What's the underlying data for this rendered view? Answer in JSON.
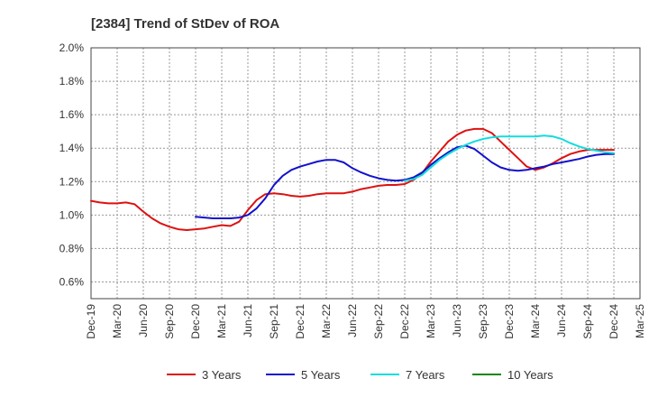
{
  "chart_data": {
    "type": "line",
    "title": "[2384]  Trend of StDev of ROA",
    "xlabel": "",
    "ylabel": "",
    "x_tick_labels": [
      "Dec-19",
      "Mar-20",
      "Jun-20",
      "Sep-20",
      "Dec-20",
      "Mar-21",
      "Jun-21",
      "Sep-21",
      "Dec-21",
      "Mar-22",
      "Jun-22",
      "Sep-22",
      "Dec-22",
      "Mar-23",
      "Jun-23",
      "Sep-23",
      "Dec-23",
      "Mar-24",
      "Jun-24",
      "Sep-24",
      "Dec-24",
      "Mar-25"
    ],
    "y_tick_labels": [
      "0.6%",
      "0.8%",
      "1.0%",
      "1.2%",
      "1.4%",
      "1.6%",
      "1.8%",
      "2.0%"
    ],
    "ylim": [
      0.5,
      2.0
    ],
    "y_ticks": [
      0.6,
      0.8,
      1.0,
      1.2,
      1.4,
      1.6,
      1.8,
      2.0
    ],
    "grid": true,
    "legend_position": "bottom",
    "series": [
      {
        "name": "3 Years",
        "color": "#dd1111",
        "x": [
          "Dec-19",
          "Jan-20",
          "Feb-20",
          "Mar-20",
          "Apr-20",
          "May-20",
          "Jun-20",
          "Jul-20",
          "Aug-20",
          "Sep-20",
          "Oct-20",
          "Nov-20",
          "Dec-20",
          "Jan-21",
          "Feb-21",
          "Mar-21",
          "Apr-21",
          "May-21",
          "Jun-21",
          "Jul-21",
          "Aug-21",
          "Sep-21",
          "Oct-21",
          "Nov-21",
          "Dec-21",
          "Jan-22",
          "Feb-22",
          "Mar-22",
          "Apr-22",
          "May-22",
          "Jun-22",
          "Jul-22",
          "Aug-22",
          "Sep-22",
          "Oct-22",
          "Nov-22",
          "Dec-22",
          "Jan-23",
          "Feb-23",
          "Mar-23",
          "Apr-23",
          "May-23",
          "Jun-23",
          "Jul-23",
          "Aug-23",
          "Sep-23",
          "Oct-23",
          "Nov-23",
          "Dec-23",
          "Jan-24",
          "Feb-24",
          "Mar-24",
          "Apr-24",
          "May-24",
          "Jun-24",
          "Jul-24",
          "Aug-24",
          "Sep-24",
          "Oct-24",
          "Nov-24",
          "Dec-24"
        ],
        "values": [
          1.085,
          1.075,
          1.07,
          1.07,
          1.075,
          1.065,
          1.02,
          0.98,
          0.95,
          0.93,
          0.915,
          0.91,
          0.915,
          0.92,
          0.93,
          0.94,
          0.935,
          0.96,
          1.03,
          1.09,
          1.125,
          1.13,
          1.125,
          1.115,
          1.11,
          1.115,
          1.125,
          1.13,
          1.13,
          1.13,
          1.14,
          1.155,
          1.165,
          1.175,
          1.18,
          1.18,
          1.185,
          1.21,
          1.25,
          1.32,
          1.38,
          1.44,
          1.48,
          1.505,
          1.515,
          1.515,
          1.49,
          1.44,
          1.39,
          1.34,
          1.29,
          1.27,
          1.285,
          1.31,
          1.34,
          1.365,
          1.38,
          1.39,
          1.39,
          1.39,
          1.39
        ]
      },
      {
        "name": "5 Years",
        "color": "#1111cc",
        "x": [
          "Dec-20",
          "Jan-21",
          "Feb-21",
          "Mar-21",
          "Apr-21",
          "May-21",
          "Jun-21",
          "Jul-21",
          "Aug-21",
          "Sep-21",
          "Oct-21",
          "Nov-21",
          "Dec-21",
          "Jan-22",
          "Feb-22",
          "Mar-22",
          "Apr-22",
          "May-22",
          "Jun-22",
          "Jul-22",
          "Aug-22",
          "Sep-22",
          "Oct-22",
          "Nov-22",
          "Dec-22",
          "Jan-23",
          "Feb-23",
          "Mar-23",
          "Apr-23",
          "May-23",
          "Jun-23",
          "Jul-23",
          "Aug-23",
          "Sep-23",
          "Oct-23",
          "Nov-23",
          "Dec-23",
          "Jan-24",
          "Feb-24",
          "Mar-24",
          "Apr-24",
          "May-24",
          "Jun-24",
          "Jul-24",
          "Aug-24",
          "Sep-24",
          "Oct-24",
          "Nov-24",
          "Dec-24"
        ],
        "values": [
          0.99,
          0.985,
          0.98,
          0.98,
          0.98,
          0.985,
          1.0,
          1.04,
          1.1,
          1.18,
          1.235,
          1.27,
          1.29,
          1.305,
          1.32,
          1.33,
          1.33,
          1.315,
          1.28,
          1.255,
          1.235,
          1.22,
          1.21,
          1.205,
          1.21,
          1.225,
          1.255,
          1.3,
          1.34,
          1.375,
          1.405,
          1.415,
          1.395,
          1.355,
          1.315,
          1.285,
          1.27,
          1.265,
          1.27,
          1.28,
          1.29,
          1.305,
          1.315,
          1.325,
          1.335,
          1.35,
          1.36,
          1.365,
          1.365
        ]
      },
      {
        "name": "7 Years",
        "color": "#11dddd",
        "x": [
          "Dec-22",
          "Jan-23",
          "Feb-23",
          "Mar-23",
          "Apr-23",
          "May-23",
          "Jun-23",
          "Jul-23",
          "Aug-23",
          "Sep-23",
          "Oct-23",
          "Nov-23",
          "Dec-23",
          "Jan-24",
          "Feb-24",
          "Mar-24",
          "Apr-24",
          "May-24",
          "Jun-24",
          "Jul-24",
          "Aug-24",
          "Sep-24",
          "Oct-24",
          "Nov-24",
          "Dec-24"
        ],
        "values": [
          1.205,
          1.215,
          1.24,
          1.285,
          1.33,
          1.365,
          1.395,
          1.42,
          1.44,
          1.455,
          1.465,
          1.47,
          1.47,
          1.47,
          1.47,
          1.47,
          1.475,
          1.47,
          1.455,
          1.43,
          1.41,
          1.395,
          1.385,
          1.375,
          1.37
        ]
      },
      {
        "name": "10 Years",
        "color": "#118811",
        "x": [],
        "values": []
      }
    ]
  }
}
